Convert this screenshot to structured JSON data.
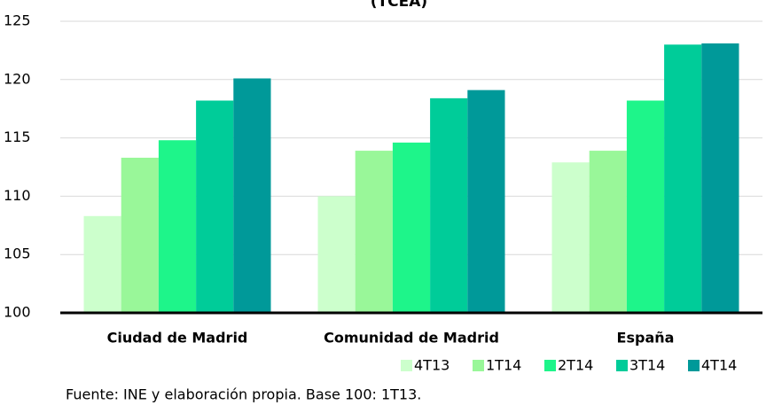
{
  "chart_data": {
    "type": "bar",
    "title": "(TCEA)",
    "categories": [
      "Ciudad de Madrid",
      "Comunidad de Madrid",
      "España"
    ],
    "series": [
      {
        "name": "4T13",
        "color": "#ccffcc",
        "values": [
          108.3,
          110.0,
          112.9
        ]
      },
      {
        "name": "1T14",
        "color": "#99f799",
        "values": [
          113.3,
          113.9,
          113.9
        ]
      },
      {
        "name": "2T14",
        "color": "#1ef58a",
        "values": [
          114.8,
          114.6,
          118.2
        ]
      },
      {
        "name": "3T14",
        "color": "#00cc99",
        "values": [
          118.2,
          118.4,
          123.0
        ]
      },
      {
        "name": "4T14",
        "color": "#009999",
        "values": [
          120.1,
          119.1,
          123.1
        ]
      }
    ],
    "ylim": [
      100,
      125
    ],
    "yticks": [
      100,
      105,
      110,
      115,
      120,
      125
    ],
    "grid": true,
    "legend": "bottom-right",
    "source": "Fuente: INE y elaboración propia. Base 100: 1T13."
  }
}
